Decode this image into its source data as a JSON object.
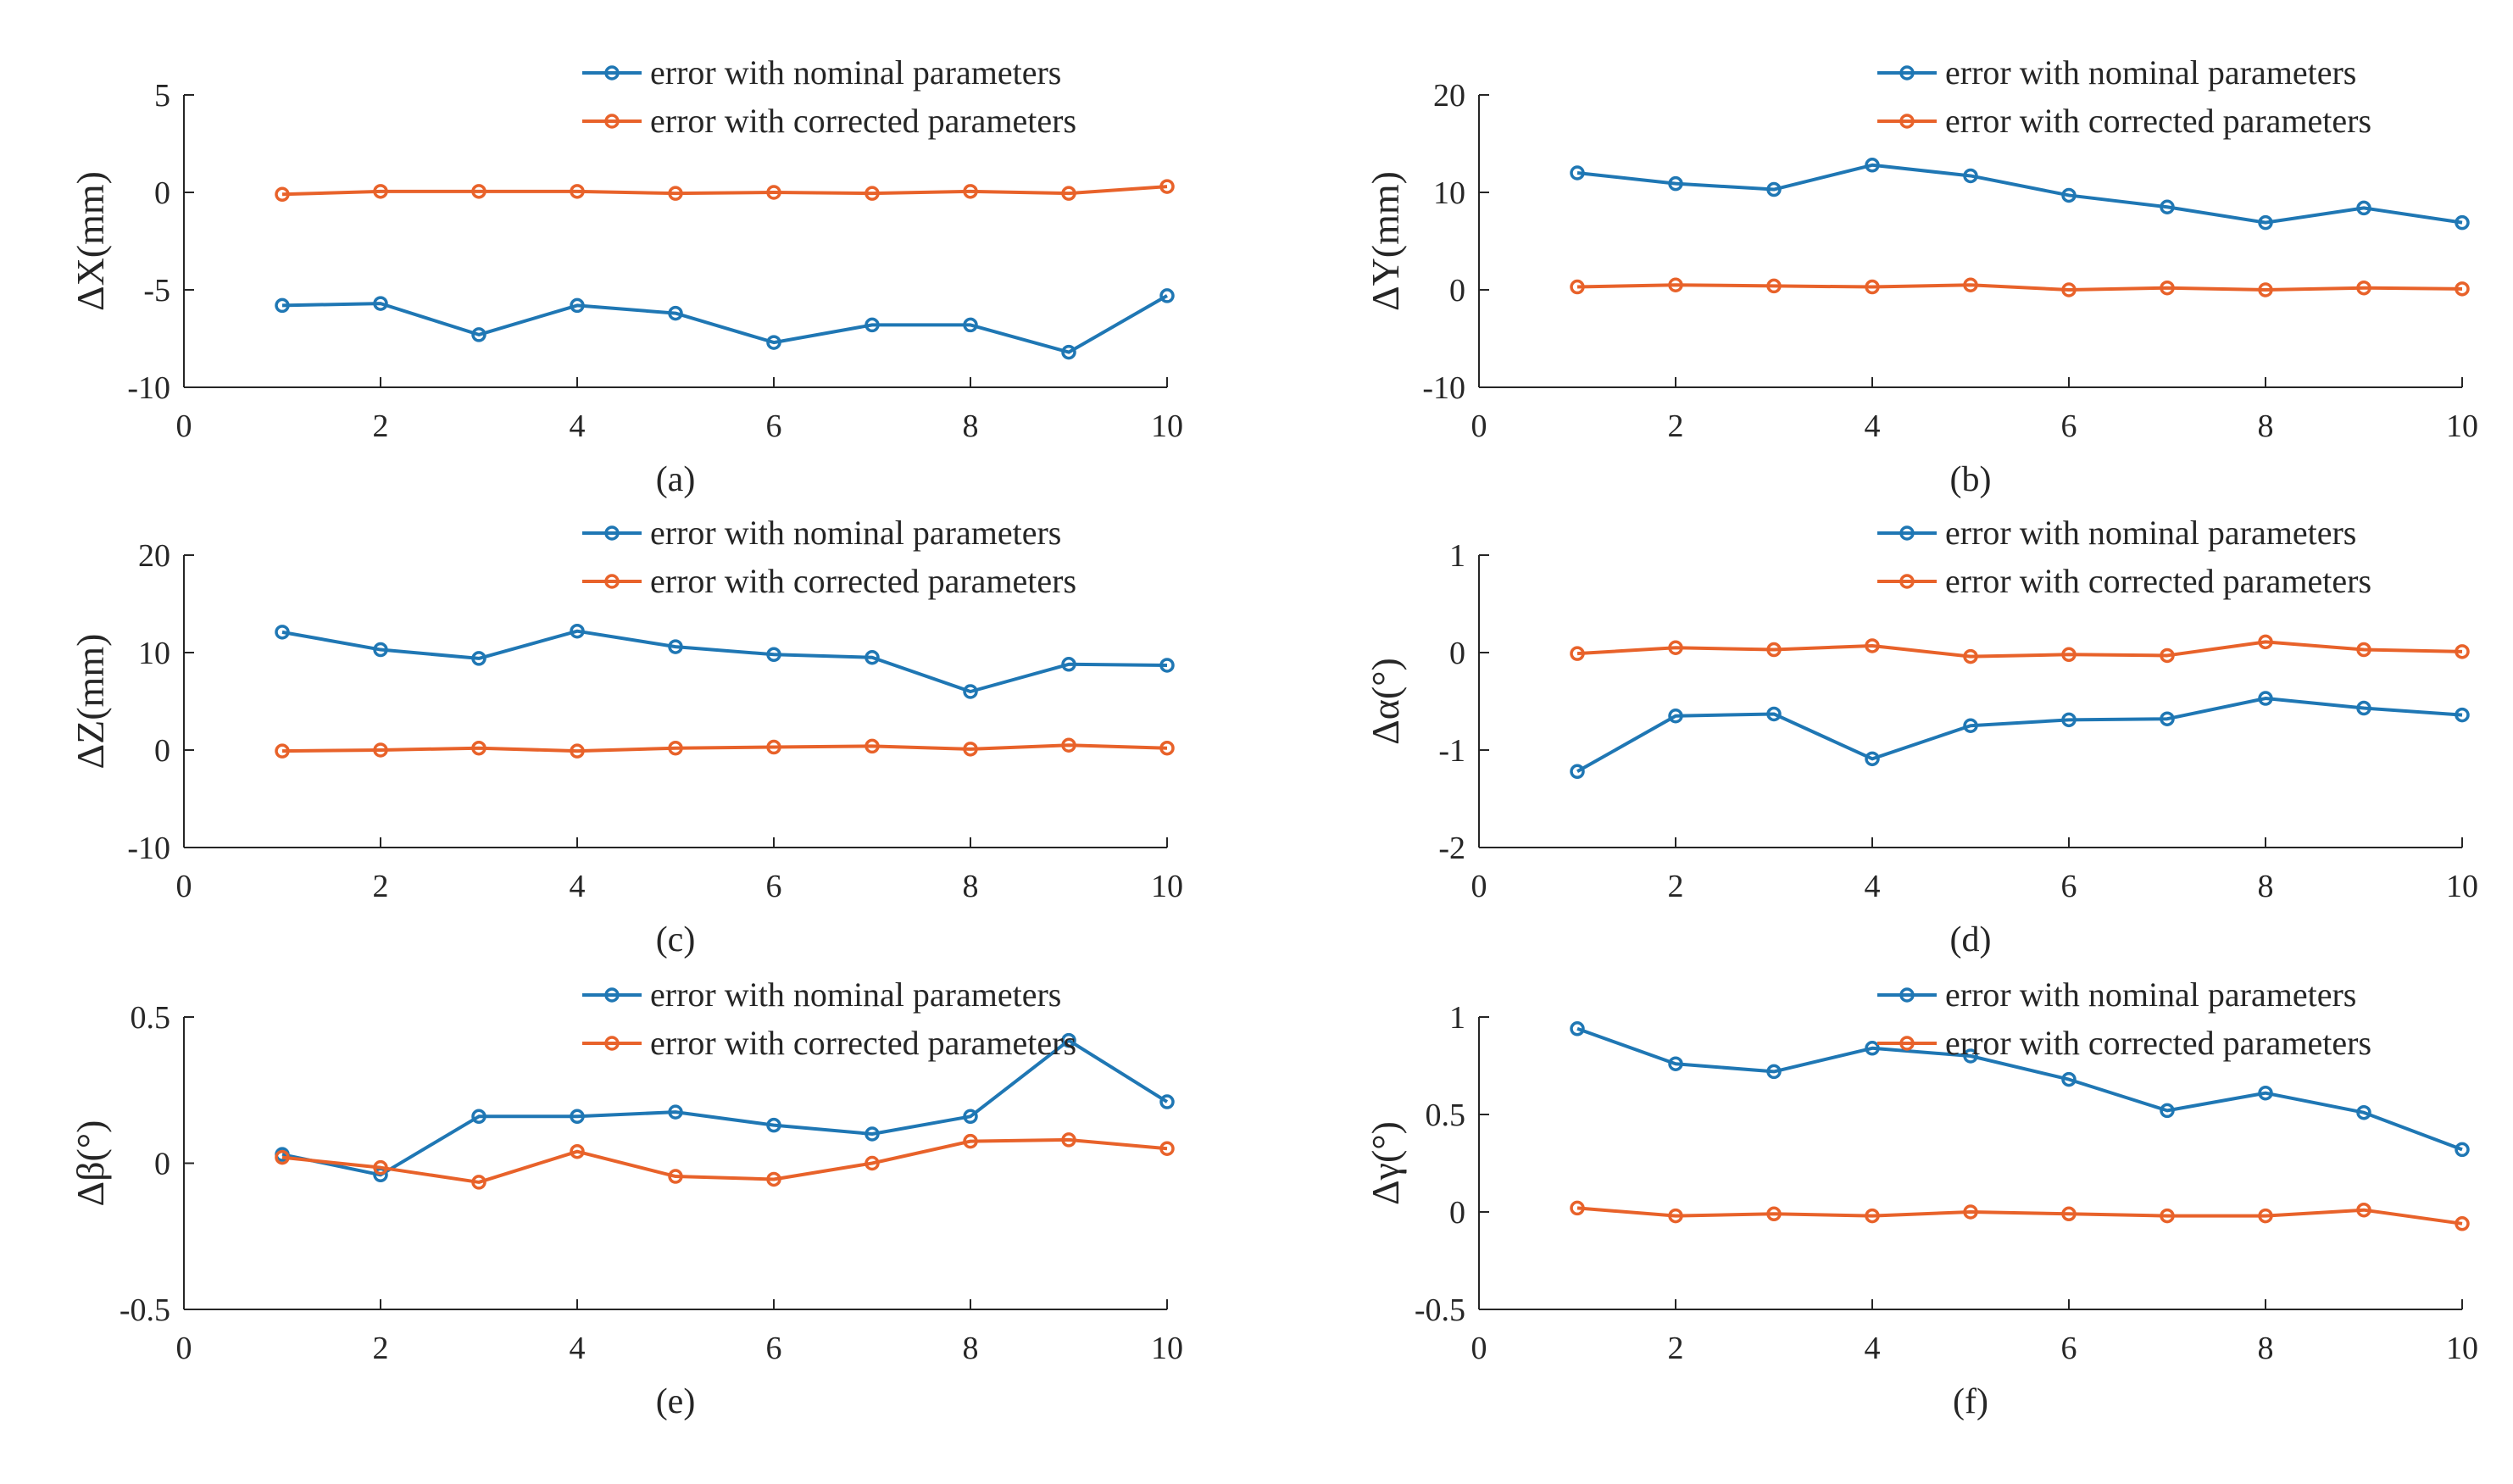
{
  "figure": {
    "series_names": [
      "error with nominal parameters",
      "error with corrected parameters"
    ],
    "colors": {
      "nominal": "#1f77b4",
      "corrected": "#e8622a",
      "axis": "#262626"
    }
  },
  "chart_data": [
    {
      "type": "line",
      "caption": "(a)",
      "ylabel": "ΔX(mm)",
      "xlim": [
        0,
        10
      ],
      "ylim": [
        -10,
        5
      ],
      "xticks": [
        0,
        2,
        4,
        6,
        8,
        10
      ],
      "yticks": [
        -10,
        -5,
        0,
        5
      ],
      "x": [
        1,
        2,
        3,
        4,
        5,
        6,
        7,
        8,
        9,
        10
      ],
      "series": [
        {
          "name": "error with nominal parameters",
          "values": [
            -5.8,
            -5.7,
            -7.3,
            -5.8,
            -6.2,
            -7.7,
            -6.8,
            -6.8,
            -8.2,
            -5.3
          ]
        },
        {
          "name": "error with corrected parameters",
          "values": [
            -0.1,
            0.05,
            0.05,
            0.05,
            -0.05,
            0.0,
            -0.05,
            0.05,
            -0.05,
            0.3
          ]
        }
      ],
      "legend": "top-right"
    },
    {
      "type": "line",
      "caption": "(b)",
      "ylabel": "ΔY(mm)",
      "xlim": [
        0,
        10
      ],
      "ylim": [
        -10,
        20
      ],
      "xticks": [
        0,
        2,
        4,
        6,
        8,
        10
      ],
      "yticks": [
        -10,
        0,
        10,
        20
      ],
      "x": [
        1,
        2,
        3,
        4,
        5,
        6,
        7,
        8,
        9,
        10
      ],
      "series": [
        {
          "name": "error with nominal parameters",
          "values": [
            12.0,
            10.9,
            10.3,
            12.8,
            11.7,
            9.7,
            8.5,
            6.9,
            8.4,
            6.9
          ]
        },
        {
          "name": "error with corrected parameters",
          "values": [
            0.3,
            0.5,
            0.4,
            0.3,
            0.5,
            0.0,
            0.2,
            0.0,
            0.2,
            0.1
          ]
        }
      ],
      "legend": "top-right"
    },
    {
      "type": "line",
      "caption": "(c)",
      "ylabel": "ΔZ(mm)",
      "xlim": [
        0,
        10
      ],
      "ylim": [
        -10,
        20
      ],
      "xticks": [
        0,
        2,
        4,
        6,
        8,
        10
      ],
      "yticks": [
        -10,
        0,
        10,
        20
      ],
      "x": [
        1,
        2,
        3,
        4,
        5,
        6,
        7,
        8,
        9,
        10
      ],
      "series": [
        {
          "name": "error with nominal parameters",
          "values": [
            12.1,
            10.3,
            9.4,
            12.2,
            10.6,
            9.8,
            9.5,
            6.0,
            8.8,
            8.7
          ]
        },
        {
          "name": "error with corrected parameters",
          "values": [
            -0.1,
            0.0,
            0.2,
            -0.1,
            0.2,
            0.3,
            0.4,
            0.1,
            0.5,
            0.2
          ]
        }
      ],
      "legend": "top-right"
    },
    {
      "type": "line",
      "caption": "(d)",
      "ylabel": "Δα(°)",
      "xlim": [
        0,
        10
      ],
      "ylim": [
        -2,
        1
      ],
      "xticks": [
        0,
        2,
        4,
        6,
        8,
        10
      ],
      "yticks": [
        -2,
        -1,
        0,
        1
      ],
      "x": [
        1,
        2,
        3,
        4,
        5,
        6,
        7,
        8,
        9,
        10
      ],
      "series": [
        {
          "name": "error with nominal parameters",
          "values": [
            -1.22,
            -0.65,
            -0.63,
            -1.09,
            -0.75,
            -0.69,
            -0.68,
            -0.47,
            -0.57,
            -0.64
          ]
        },
        {
          "name": "error with corrected parameters",
          "values": [
            -0.01,
            0.05,
            0.03,
            0.07,
            -0.04,
            -0.02,
            -0.03,
            0.11,
            0.03,
            0.01
          ]
        }
      ],
      "legend": "top-right"
    },
    {
      "type": "line",
      "caption": "(e)",
      "ylabel": "Δβ(°)",
      "xlim": [
        0,
        10
      ],
      "ylim": [
        -0.5,
        0.5
      ],
      "xticks": [
        0,
        2,
        4,
        6,
        8,
        10
      ],
      "yticks": [
        -0.5,
        0,
        0.5
      ],
      "x": [
        1,
        2,
        3,
        4,
        5,
        6,
        7,
        8,
        9,
        10
      ],
      "series": [
        {
          "name": "error with nominal parameters",
          "values": [
            0.03,
            -0.04,
            0.16,
            0.16,
            0.175,
            0.13,
            0.1,
            0.16,
            0.42,
            0.21
          ]
        },
        {
          "name": "error with corrected parameters",
          "values": [
            0.02,
            -0.015,
            -0.065,
            0.04,
            -0.045,
            -0.055,
            0.0,
            0.075,
            0.08,
            0.05
          ]
        }
      ],
      "legend": "top-right"
    },
    {
      "type": "line",
      "caption": "(f)",
      "ylabel": "Δγ(°)",
      "xlim": [
        0,
        10
      ],
      "ylim": [
        -0.5,
        1
      ],
      "xticks": [
        0,
        2,
        4,
        6,
        8,
        10
      ],
      "yticks": [
        -0.5,
        0,
        0.5,
        1
      ],
      "x": [
        1,
        2,
        3,
        4,
        5,
        6,
        7,
        8,
        9,
        10
      ],
      "series": [
        {
          "name": "error with nominal parameters",
          "values": [
            0.94,
            0.76,
            0.72,
            0.84,
            0.8,
            0.68,
            0.52,
            0.61,
            0.51,
            0.32
          ]
        },
        {
          "name": "error with corrected parameters",
          "values": [
            0.02,
            -0.02,
            -0.01,
            -0.02,
            0.0,
            -0.01,
            -0.02,
            -0.02,
            0.01,
            -0.06
          ]
        }
      ],
      "legend": "top-right"
    }
  ]
}
